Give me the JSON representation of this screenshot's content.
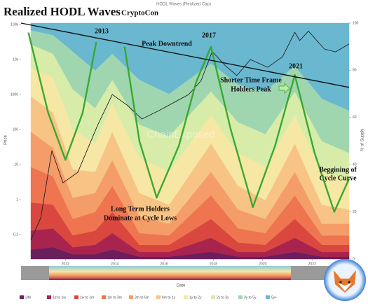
{
  "chart_data": {
    "type": "area",
    "title": "Realized HODL Waves",
    "title_note": "CryptoCon",
    "subtitle": "HODL Waves (Realized Cap)",
    "xlabel": "Date",
    "ylabel": "Price",
    "y2label": "% of Supply",
    "log": true,
    "xlim": [
      2010.2,
      2023.5
    ],
    "xticks": [
      2012,
      2014,
      2016,
      2018,
      2020,
      2022
    ],
    "ylim": [
      0.02,
      110000
    ],
    "yticks": [
      {
        "value": 0.1,
        "label": "0.1"
      },
      1,
      10,
      100,
      1000,
      {
        "value": 10000,
        "label": "10k"
      },
      {
        "value": 100000,
        "label": "100k"
      }
    ],
    "y2lim": [
      0,
      100
    ],
    "y2ticks": [
      0,
      20,
      40,
      60,
      80,
      100
    ],
    "x": [
      2010.6,
      2011.5,
      2012.3,
      2013.2,
      2013.9,
      2015.0,
      2016.2,
      2017.9,
      2019.0,
      2020.1,
      2021.3,
      2022.4,
      2023.5
    ],
    "series": [
      {
        "name": "24h",
        "color": "#6b1e5c",
        "axis": "y2",
        "values": [
          4,
          5,
          2,
          2,
          4,
          1,
          1,
          3,
          1,
          1,
          3,
          1,
          1
        ]
      },
      {
        "name": "1d to 1w",
        "color": "#a8244f",
        "axis": "y2",
        "values": [
          8,
          8,
          3,
          4,
          7,
          2,
          2,
          6,
          2,
          2,
          6,
          2,
          2
        ]
      },
      {
        "name": "1w to 1m",
        "color": "#d9473f",
        "axis": "y2",
        "values": [
          12,
          10,
          5,
          6,
          9,
          3,
          3,
          8,
          4,
          3,
          8,
          3,
          3
        ]
      },
      {
        "name": "1m to 3m",
        "color": "#ee7550",
        "axis": "y2",
        "values": [
          15,
          12,
          7,
          8,
          11,
          5,
          4,
          10,
          6,
          5,
          10,
          4,
          4
        ]
      },
      {
        "name": "3m to 6m",
        "color": "#f59d68",
        "axis": "y2",
        "values": [
          15,
          12,
          9,
          8,
          11,
          7,
          5,
          10,
          8,
          6,
          10,
          5,
          5
        ]
      },
      {
        "name": "6m to 1y",
        "color": "#f8c486",
        "axis": "y2",
        "values": [
          15,
          15,
          12,
          9,
          12,
          10,
          8,
          12,
          10,
          8,
          12,
          8,
          6
        ]
      },
      {
        "name": "1y to 2y",
        "color": "#f7e7a4",
        "axis": "y2",
        "values": [
          12,
          15,
          17,
          12,
          12,
          15,
          14,
          12,
          14,
          14,
          12,
          14,
          12
        ]
      },
      {
        "name": "2y to 3y",
        "color": "#d8ecaa",
        "axis": "y2",
        "values": [
          10,
          10,
          17,
          15,
          10,
          14,
          15,
          10,
          13,
          14,
          10,
          13,
          12
        ]
      },
      {
        "name": "3y to 5y",
        "color": "#9fd6b0",
        "axis": "y2",
        "values": [
          6,
          8,
          16,
          16,
          11,
          19,
          18,
          12,
          16,
          18,
          11,
          18,
          18
        ]
      },
      {
        "name": "5y+",
        "color": "#69b8d0",
        "axis": "y2",
        "values": [
          3,
          5,
          12,
          20,
          13,
          24,
          30,
          17,
          26,
          29,
          18,
          32,
          37
        ]
      }
    ],
    "price": {
      "color": "#222222",
      "x": [
        2010.6,
        2011.0,
        2011.45,
        2011.9,
        2012.5,
        2013.3,
        2013.9,
        2014.5,
        2015.1,
        2015.8,
        2016.5,
        2017.0,
        2017.5,
        2017.95,
        2018.5,
        2018.95,
        2019.5,
        2020.2,
        2020.8,
        2021.3,
        2021.5,
        2021.85,
        2022.5,
        2022.95,
        2023.5
      ],
      "values": [
        0.07,
        0.3,
        25,
        3,
        6,
        130,
        1000,
        500,
        200,
        350,
        650,
        1000,
        2500,
        17000,
        6500,
        3500,
        10000,
        6000,
        12000,
        60000,
        35000,
        65000,
        20000,
        16500,
        28000
      ]
    },
    "cycle_curve": {
      "color": "#3aa830",
      "axis": "y2",
      "x": [
        2010.5,
        2011.3,
        2012.0,
        2012.7,
        2013.25,
        2013.6,
        2014.4,
        2015.0,
        2015.7,
        2016.6,
        2017.3,
        2017.9,
        2018.7,
        2019.6,
        2020.5,
        2021.3,
        2022.1,
        2022.9,
        2023.5
      ],
      "values": [
        96,
        62,
        42,
        62,
        92,
        null,
        90,
        50,
        26,
        48,
        75,
        90,
        55,
        22,
        48,
        78,
        45,
        20,
        34
      ]
    },
    "trend_line": {
      "color": "#111111",
      "x": [
        2010.2,
        2023.5
      ],
      "values": [
        110000,
        1600
      ]
    },
    "annotations": [
      "2013",
      "2017",
      "2021",
      "Peak Downtrend",
      "Shorter Time Frame",
      "Holders Peak",
      "Beggining of",
      "Cycle Curve",
      "Long Term Holders",
      "Dominate at Cycle Lows"
    ],
    "watermark": "ChainExposed"
  }
}
